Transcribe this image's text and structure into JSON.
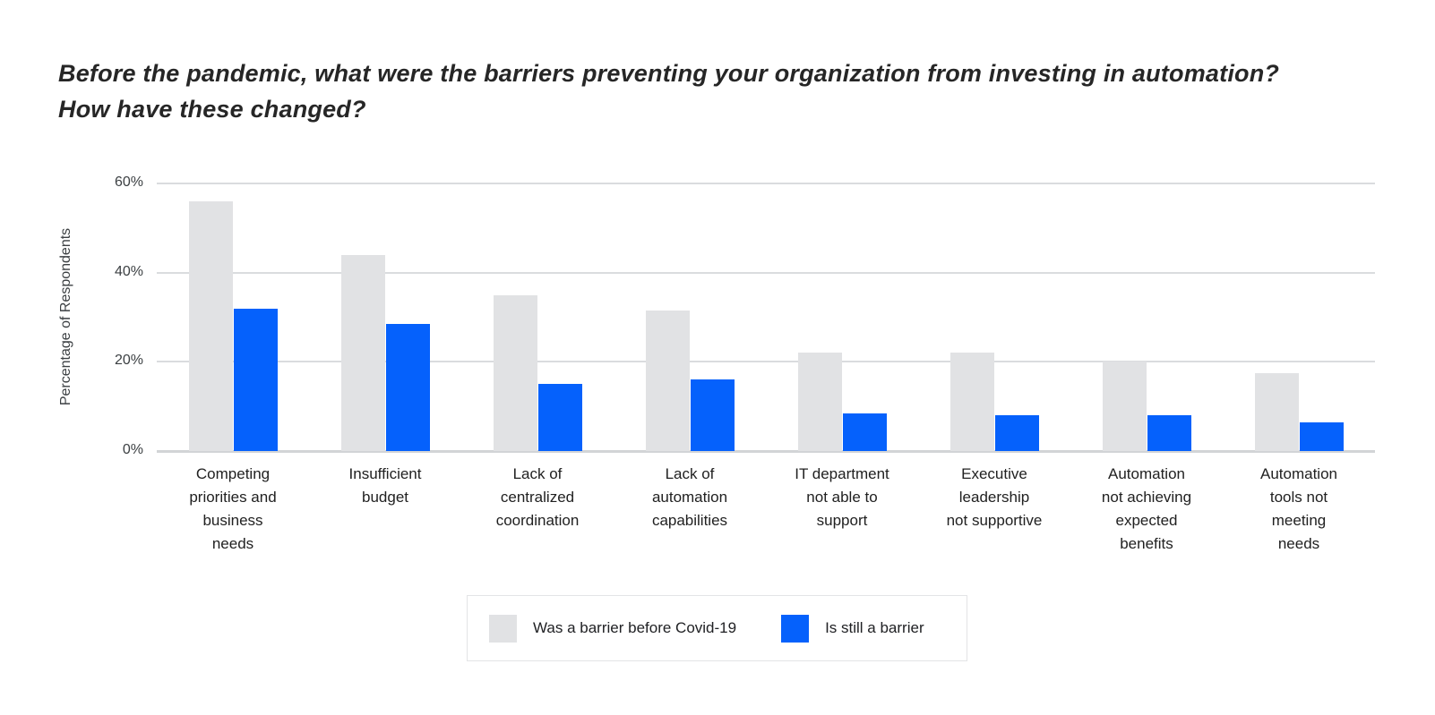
{
  "title": {
    "line1": "Before the pandemic, what were the barriers preventing your organization from investing in automation?",
    "line2": "How have these changed?"
  },
  "chart_data": {
    "type": "bar",
    "title": "Before the pandemic, what were the barriers preventing your organization from investing in automation? How have these changed?",
    "xlabel": "",
    "ylabel": "Percentage of Respondents",
    "ylim": [
      0,
      60
    ],
    "grid": true,
    "legend_position": "bottom",
    "yticks": [
      {
        "label": "0%",
        "value": 0
      },
      {
        "label": "20%",
        "value": 20
      },
      {
        "label": "40%",
        "value": 40
      },
      {
        "label": "60%",
        "value": 60
      }
    ],
    "categories": [
      {
        "label": "Competing priorities and business needs",
        "lines": [
          "Competing",
          "priorities and",
          "business",
          "needs"
        ]
      },
      {
        "label": "Insufficient budget",
        "lines": [
          "Insufficient",
          "budget"
        ]
      },
      {
        "label": "Lack of centralized coordination",
        "lines": [
          "Lack of",
          "centralized",
          "coordination"
        ]
      },
      {
        "label": "Lack of automation capabilities",
        "lines": [
          "Lack of",
          "automation",
          "capabilities"
        ]
      },
      {
        "label": "IT department not able to support",
        "lines": [
          "IT department",
          "not able to",
          "support"
        ]
      },
      {
        "label": "Executive leadership not supportive",
        "lines": [
          "Executive",
          "leadership",
          "not supportive"
        ]
      },
      {
        "label": "Automation not achieving expected benefits",
        "lines": [
          "Automation",
          "not achieving",
          "expected",
          "benefits"
        ]
      },
      {
        "label": "Automation tools not meeting needs",
        "lines": [
          "Automation",
          "tools not",
          "meeting",
          "needs"
        ]
      }
    ],
    "series": [
      {
        "name": "Was a barrier before Covid-19",
        "color": "#e1e2e4",
        "values": [
          56,
          44,
          35,
          31.5,
          22,
          22,
          20,
          17.5
        ]
      },
      {
        "name": "Is still a barrier",
        "color": "#0561fc",
        "values": [
          32,
          28.5,
          15,
          16,
          8.5,
          8,
          8,
          6.5
        ]
      }
    ]
  },
  "colors": {
    "background": "#ffffff",
    "gridline": "#dadcde",
    "axis_text": "#3c4043",
    "label_text": "#212121",
    "title_text": "#262626",
    "legend_border": "#e3e4e6"
  }
}
